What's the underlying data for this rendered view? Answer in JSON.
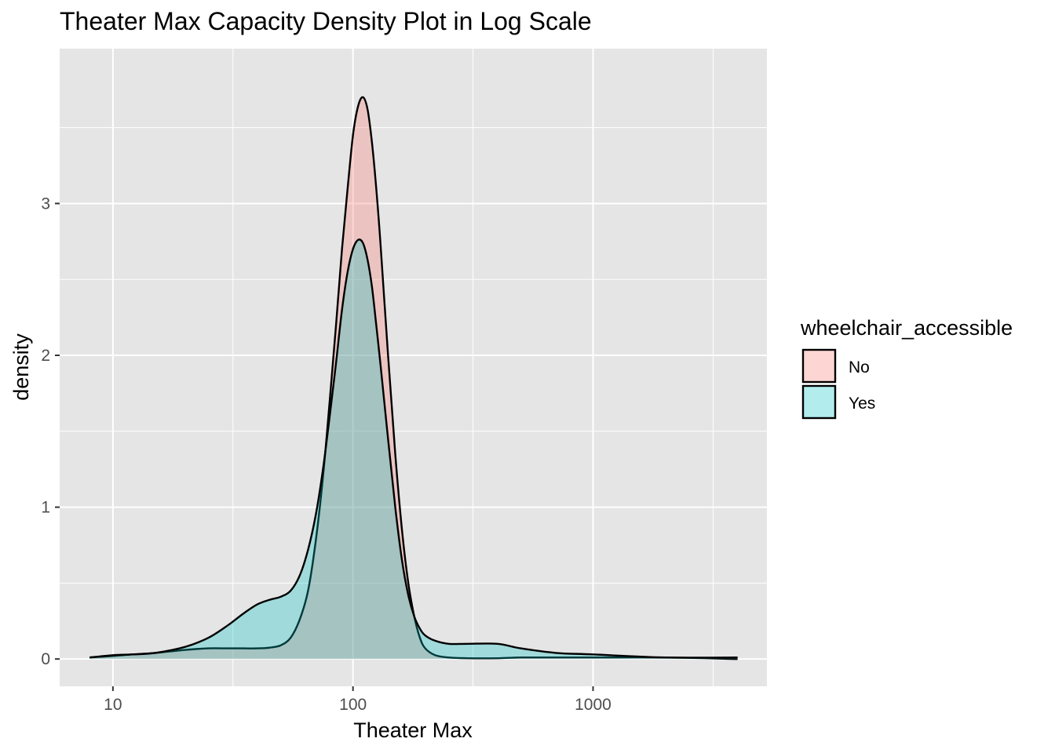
{
  "chart_data": {
    "type": "area",
    "title": "Theater Max Capacity Density Plot in Log Scale",
    "xlabel": "Theater Max",
    "ylabel": "density",
    "x_scale": "log10",
    "xlim": [
      6,
      5300
    ],
    "ylim": [
      -0.18,
      4.02
    ],
    "x_ticks": [
      10,
      100,
      1000
    ],
    "x_tick_labels": [
      "10",
      "100",
      "1000"
    ],
    "y_ticks": [
      0,
      1,
      2,
      3
    ],
    "y_tick_labels": [
      "0",
      "1",
      "2",
      "3"
    ],
    "grid": true,
    "legend": {
      "title": "wheelchair_accessible",
      "placement": "right"
    },
    "series": [
      {
        "name": "No",
        "color": "#F8766D",
        "x": [
          8,
          10,
          12,
          15,
          20,
          25,
          30,
          35,
          40,
          45,
          50,
          55,
          60,
          65,
          70,
          75,
          80,
          85,
          90,
          95,
          100,
          105,
          110,
          115,
          120,
          125,
          130,
          140,
          150,
          160,
          170,
          180,
          190,
          200,
          220,
          250,
          300,
          400,
          500,
          700,
          1000,
          2000,
          4000
        ],
        "y": [
          0.01,
          0.02,
          0.03,
          0.04,
          0.06,
          0.07,
          0.07,
          0.07,
          0.07,
          0.075,
          0.09,
          0.14,
          0.26,
          0.45,
          0.78,
          1.2,
          1.7,
          2.2,
          2.7,
          3.1,
          3.45,
          3.64,
          3.7,
          3.62,
          3.4,
          3.1,
          2.75,
          2.0,
          1.35,
          0.85,
          0.5,
          0.28,
          0.14,
          0.07,
          0.025,
          0.01,
          0.005,
          0.005,
          0.01,
          0.01,
          0.01,
          0.01,
          0.0
        ]
      },
      {
        "name": "Yes",
        "color": "#00BFC4",
        "x": [
          8,
          10,
          12,
          15,
          20,
          25,
          30,
          35,
          40,
          45,
          50,
          55,
          60,
          65,
          70,
          75,
          80,
          85,
          90,
          95,
          100,
          105,
          110,
          115,
          120,
          125,
          130,
          140,
          150,
          160,
          170,
          180,
          190,
          200,
          220,
          250,
          300,
          400,
          500,
          700,
          1000,
          2000,
          4000
        ],
        "y": [
          0.01,
          0.025,
          0.03,
          0.04,
          0.08,
          0.14,
          0.22,
          0.3,
          0.36,
          0.39,
          0.41,
          0.45,
          0.55,
          0.72,
          0.95,
          1.25,
          1.6,
          1.95,
          2.3,
          2.55,
          2.7,
          2.76,
          2.74,
          2.63,
          2.45,
          2.2,
          1.95,
          1.45,
          1.0,
          0.65,
          0.42,
          0.28,
          0.2,
          0.155,
          0.12,
          0.1,
          0.1,
          0.1,
          0.07,
          0.04,
          0.03,
          0.01,
          0.01
        ]
      }
    ]
  }
}
